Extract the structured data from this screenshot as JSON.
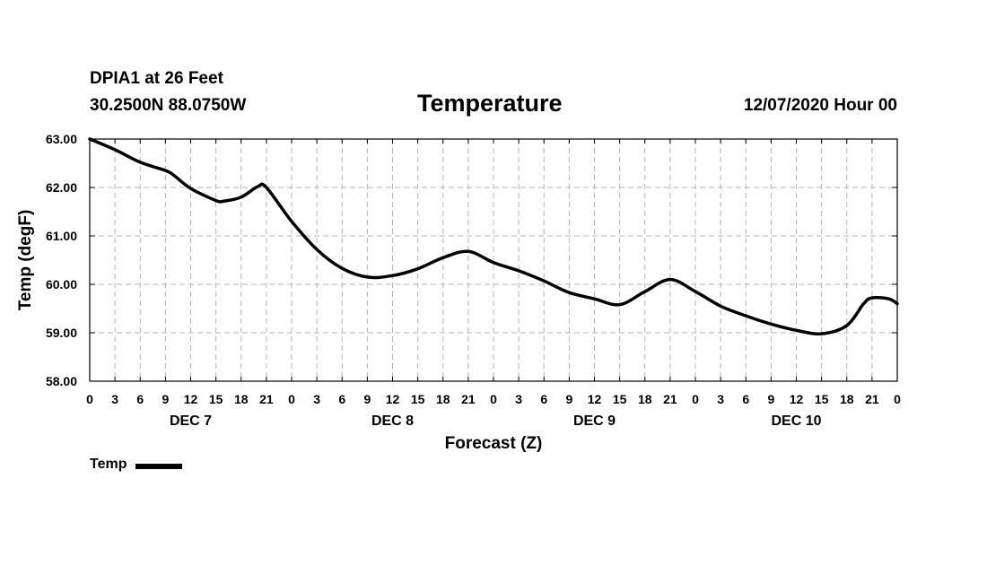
{
  "header": {
    "station_name": "DPIA1 at 26 Feet",
    "coordinates": "30.2500N 88.0750W",
    "title": "Temperature",
    "forecast_time": "12/07/2020 Hour 00"
  },
  "legend": {
    "label": "Temp",
    "color": "#000000"
  },
  "chart_data": {
    "type": "line",
    "title": "Temperature",
    "xlabel": "Forecast (Z)",
    "ylabel": "Temp (degF)",
    "ylim": [
      58,
      63
    ],
    "xlim": [
      0,
      96
    ],
    "grid": true,
    "y_ticks": [
      "58.00",
      "59.00",
      "60.00",
      "61.00",
      "62.00",
      "63.00"
    ],
    "x_tick_hours": [
      0,
      3,
      6,
      9,
      12,
      15,
      18,
      21,
      24,
      27,
      30,
      33,
      36,
      39,
      42,
      45,
      48,
      51,
      54,
      57,
      60,
      63,
      66,
      69,
      72,
      75,
      78,
      81,
      84,
      87,
      90,
      93,
      96
    ],
    "x_tick_labels": [
      "0",
      "3",
      "6",
      "9",
      "12",
      "15",
      "18",
      "21",
      "0",
      "3",
      "6",
      "9",
      "12",
      "15",
      "18",
      "21",
      "0",
      "3",
      "6",
      "9",
      "12",
      "15",
      "18",
      "21",
      "0",
      "3",
      "6",
      "9",
      "12",
      "15",
      "18",
      "21",
      "0"
    ],
    "days": [
      {
        "label": "DEC 7",
        "center_hour": 12
      },
      {
        "label": "DEC 8",
        "center_hour": 36
      },
      {
        "label": "DEC 9",
        "center_hour": 60
      },
      {
        "label": "DEC 10",
        "center_hour": 84
      }
    ],
    "series": [
      {
        "name": "Temp",
        "color": "#000000",
        "x": [
          0,
          3,
          6,
          9,
          10,
          12,
          15,
          16,
          18,
          20,
          21,
          24,
          27,
          30,
          33,
          36,
          39,
          42,
          45,
          48,
          51,
          54,
          57,
          60,
          63,
          66,
          69,
          72,
          75,
          78,
          81,
          84,
          87,
          90,
          92,
          93,
          95,
          96
        ],
        "y": [
          63.0,
          62.78,
          62.52,
          62.35,
          62.25,
          61.98,
          61.73,
          61.72,
          61.8,
          62.02,
          62.0,
          61.3,
          60.72,
          60.33,
          60.15,
          60.18,
          60.32,
          60.55,
          60.68,
          60.45,
          60.28,
          60.07,
          59.83,
          59.7,
          59.58,
          59.85,
          60.1,
          59.85,
          59.55,
          59.35,
          59.18,
          59.05,
          58.98,
          59.15,
          59.6,
          59.72,
          59.7,
          59.6
        ]
      }
    ]
  }
}
